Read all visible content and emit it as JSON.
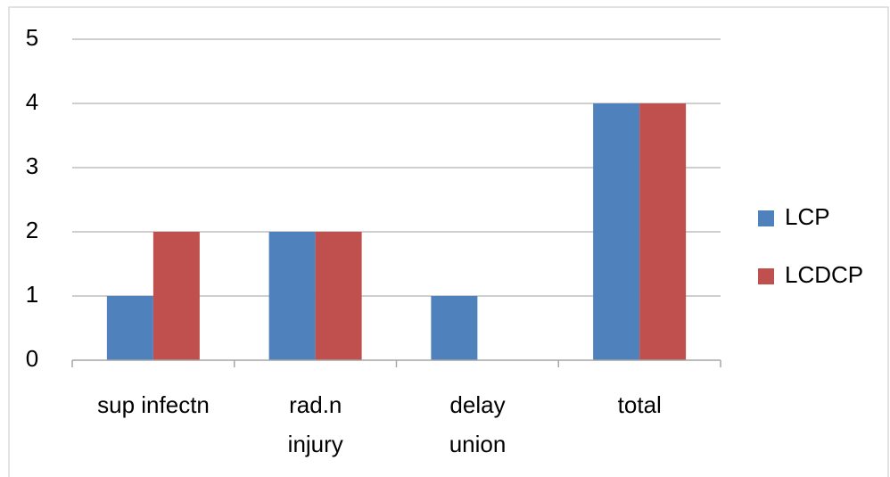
{
  "chart_data": {
    "type": "bar",
    "categories": [
      "sup infectn",
      "rad.n\ninjury",
      "delay\nunion",
      "total"
    ],
    "series": [
      {
        "name": "LCP",
        "color": "#4f81bd",
        "values": [
          1,
          2,
          1,
          4
        ]
      },
      {
        "name": "LCDCP",
        "color": "#c0504d",
        "values": [
          2,
          2,
          0,
          4
        ]
      }
    ],
    "ylim": [
      0,
      5
    ],
    "yticks": [
      0,
      1,
      2,
      3,
      4,
      5
    ],
    "grid": true,
    "legend": "right"
  }
}
